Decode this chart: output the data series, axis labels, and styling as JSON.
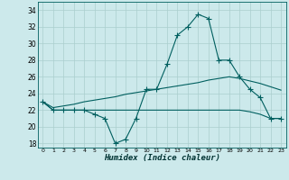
{
  "xlabel": "Humidex (Indice chaleur)",
  "x_values": [
    0,
    1,
    2,
    3,
    4,
    5,
    6,
    7,
    8,
    9,
    10,
    11,
    12,
    13,
    14,
    15,
    16,
    17,
    18,
    19,
    20,
    21,
    22,
    23
  ],
  "main_line_y": [
    23,
    22,
    22,
    22,
    22,
    21.5,
    21,
    18,
    18.5,
    21,
    24.5,
    24.5,
    27.5,
    31,
    32,
    33.5,
    33,
    28,
    28,
    26,
    24.5,
    23.5,
    21,
    21
  ],
  "upper_line_y": [
    23,
    22.3,
    22.5,
    22.7,
    23.0,
    23.2,
    23.4,
    23.6,
    23.9,
    24.1,
    24.3,
    24.5,
    24.7,
    24.9,
    25.1,
    25.3,
    25.6,
    25.8,
    26.0,
    25.8,
    25.5,
    25.2,
    24.8,
    24.4
  ],
  "lower_line_y": [
    23,
    22,
    22,
    22,
    22,
    22,
    22,
    22,
    22,
    22,
    22,
    22,
    22,
    22,
    22,
    22,
    22,
    22,
    22,
    22,
    21.8,
    21.5,
    21,
    21
  ],
  "bg_color": "#cce9eb",
  "grid_color": "#aacece",
  "line_color": "#005f5f",
  "ylim": [
    17.5,
    35.0
  ],
  "yticks": [
    18,
    20,
    22,
    24,
    26,
    28,
    30,
    32,
    34
  ],
  "xlim": [
    -0.5,
    23.5
  ],
  "marker": "+"
}
